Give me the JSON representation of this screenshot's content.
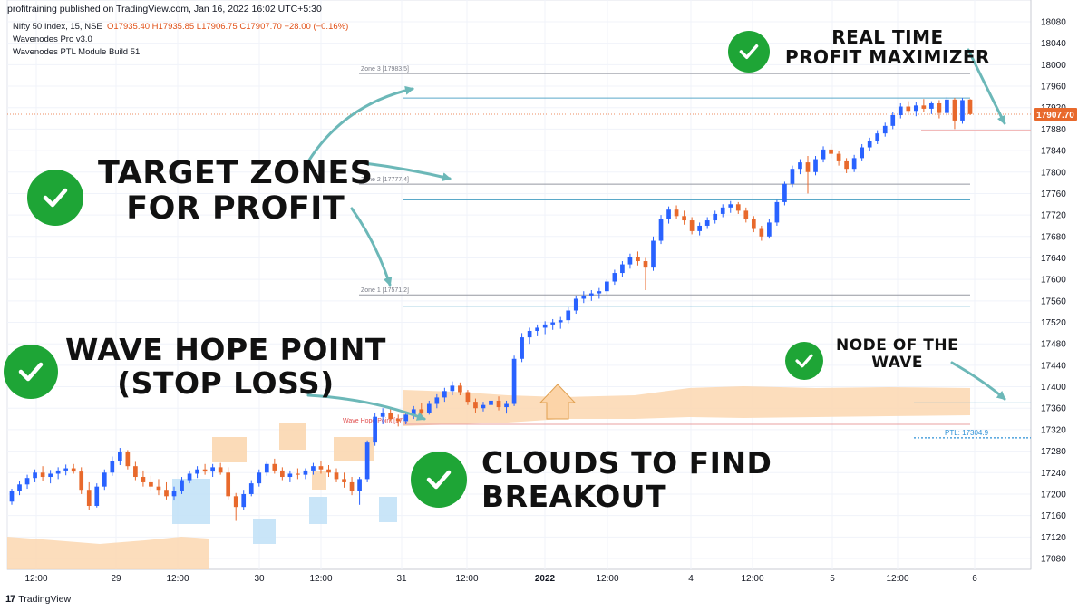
{
  "header": {
    "publish_line": "profitraining published on TradingView.com, Jan 16, 2022 16:02 UTC+5:30",
    "symbol_line": "Nifty 50 Index, 15, NSE",
    "ohlc_line": "O17935.40  H17935.85  L17906.75  C17907.70  −28.00 (−0.16%)",
    "indicator_1": "Wavenodes Pro v3.0",
    "indicator_2": "Wavenodes PTL Module Build 51"
  },
  "footer": {
    "logo_icon": "tradingview-logo-icon",
    "brand": "TradingView"
  },
  "annotations": {
    "target_zones": "TARGET ZONES\nFOR PROFIT",
    "real_time": "REAL TIME\nPROFIT MAXIMIZER",
    "wave_hope": "WAVE HOPE POINT\n(STOP LOSS)",
    "clouds": "CLOUDS TO FIND\nBREAKOUT",
    "node": "NODE OF THE\nWAVE"
  },
  "colors": {
    "up": "#2962ff",
    "down": "#e8692c",
    "check": "#1ea536",
    "arrow": "#6cb8b8",
    "cloud_orange": "#fbd7b0",
    "cloud_blue": "#bfe0f7",
    "price_tag": "#e8692c",
    "ptl": "#2b8fd6"
  },
  "chart_data": {
    "type": "candlestick",
    "symbol": "Nifty 50 Index",
    "interval": "15",
    "exchange": "NSE",
    "y_axis": {
      "ticks": [
        18080,
        18040,
        18000,
        17960,
        17920,
        17880,
        17840,
        17800,
        17760,
        17720,
        17680,
        17640,
        17600,
        17560,
        17520,
        17480,
        17440,
        17400,
        17360,
        17320,
        17280,
        17240,
        17200,
        17160,
        17120,
        17080
      ]
    },
    "ylim": [
      17050,
      18100
    ],
    "x_axis": {
      "labels": [
        "12:00",
        "29",
        "12:00",
        "30",
        "12:00",
        "31",
        "12:00",
        "2022",
        "12:00",
        "4",
        "12:00",
        "5",
        "12:00",
        "6"
      ]
    },
    "last_price": "17907.70",
    "zones": [
      {
        "label": "Zone 3 [17983.5]",
        "value": 17983.5
      },
      {
        "label": "Zone 2 [17777.4]",
        "value": 17777.4
      },
      {
        "label": "Zone 1 [17571.2]",
        "value": 17571.2
      }
    ],
    "wave_hope_point": {
      "label": "Wave Hope Point [17...",
      "value": 17330
    },
    "ptl": {
      "label": "PTL: 17304.9",
      "value": 17304.9
    },
    "target_lines": [
      17938,
      17748,
      17550
    ],
    "node_line": 17370,
    "profit_line": 17878,
    "candles_ohlc": [
      [
        17186,
        17210,
        17180,
        17205
      ],
      [
        17205,
        17225,
        17198,
        17218
      ],
      [
        17218,
        17236,
        17210,
        17230
      ],
      [
        17230,
        17246,
        17222,
        17240
      ],
      [
        17240,
        17252,
        17225,
        17232
      ],
      [
        17232,
        17245,
        17220,
        17238
      ],
      [
        17238,
        17250,
        17228,
        17244
      ],
      [
        17244,
        17255,
        17235,
        17248
      ],
      [
        17248,
        17256,
        17238,
        17242
      ],
      [
        17242,
        17250,
        17200,
        17208
      ],
      [
        17208,
        17222,
        17170,
        17178
      ],
      [
        17178,
        17220,
        17175,
        17214
      ],
      [
        17214,
        17246,
        17208,
        17240
      ],
      [
        17240,
        17270,
        17234,
        17262
      ],
      [
        17262,
        17286,
        17254,
        17278
      ],
      [
        17278,
        17282,
        17246,
        17252
      ],
      [
        17252,
        17260,
        17226,
        17232
      ],
      [
        17232,
        17244,
        17214,
        17222
      ],
      [
        17222,
        17234,
        17206,
        17214
      ],
      [
        17214,
        17228,
        17198,
        17208
      ],
      [
        17208,
        17222,
        17190,
        17196
      ],
      [
        17196,
        17214,
        17188,
        17206
      ],
      [
        17206,
        17232,
        17200,
        17226
      ],
      [
        17226,
        17244,
        17220,
        17238
      ],
      [
        17238,
        17252,
        17230,
        17246
      ],
      [
        17246,
        17256,
        17236,
        17242
      ],
      [
        17242,
        17256,
        17232,
        17250
      ],
      [
        17250,
        17258,
        17236,
        17240
      ],
      [
        17240,
        17250,
        17190,
        17196
      ],
      [
        17196,
        17202,
        17150,
        17176
      ],
      [
        17176,
        17208,
        17170,
        17200
      ],
      [
        17200,
        17226,
        17196,
        17220
      ],
      [
        17220,
        17246,
        17214,
        17240
      ],
      [
        17240,
        17260,
        17234,
        17256
      ],
      [
        17256,
        17266,
        17238,
        17244
      ],
      [
        17244,
        17250,
        17226,
        17232
      ],
      [
        17232,
        17244,
        17222,
        17238
      ],
      [
        17238,
        17248,
        17228,
        17236
      ],
      [
        17236,
        17248,
        17228,
        17244
      ],
      [
        17244,
        17258,
        17236,
        17252
      ],
      [
        17252,
        17262,
        17238,
        17246
      ],
      [
        17246,
        17254,
        17232,
        17240
      ],
      [
        17240,
        17248,
        17222,
        17228
      ],
      [
        17228,
        17240,
        17212,
        17222
      ],
      [
        17222,
        17232,
        17198,
        17206
      ],
      [
        17206,
        17232,
        17180,
        17228
      ],
      [
        17228,
        17300,
        17222,
        17296
      ],
      [
        17296,
        17352,
        17290,
        17344
      ],
      [
        17344,
        17360,
        17330,
        17352
      ],
      [
        17352,
        17362,
        17336,
        17340
      ],
      [
        17340,
        17348,
        17326,
        17336
      ],
      [
        17336,
        17354,
        17330,
        17348
      ],
      [
        17348,
        17364,
        17340,
        17358
      ],
      [
        17358,
        17370,
        17346,
        17352
      ],
      [
        17352,
        17374,
        17348,
        17368
      ],
      [
        17368,
        17386,
        17360,
        17380
      ],
      [
        17380,
        17398,
        17372,
        17392
      ],
      [
        17392,
        17410,
        17384,
        17402
      ],
      [
        17402,
        17408,
        17384,
        17390
      ],
      [
        17390,
        17394,
        17366,
        17372
      ],
      [
        17372,
        17378,
        17352,
        17360
      ],
      [
        17360,
        17372,
        17354,
        17366
      ],
      [
        17366,
        17380,
        17358,
        17374
      ],
      [
        17374,
        17382,
        17356,
        17362
      ],
      [
        17362,
        17374,
        17350,
        17368
      ],
      [
        17368,
        17458,
        17364,
        17452
      ],
      [
        17452,
        17500,
        17446,
        17492
      ],
      [
        17492,
        17510,
        17480,
        17504
      ],
      [
        17504,
        17516,
        17494,
        17510
      ],
      [
        17510,
        17522,
        17498,
        17516
      ],
      [
        17516,
        17526,
        17506,
        17520
      ],
      [
        17520,
        17530,
        17508,
        17524
      ],
      [
        17524,
        17548,
        17518,
        17542
      ],
      [
        17542,
        17570,
        17536,
        17564
      ],
      [
        17564,
        17578,
        17556,
        17570
      ],
      [
        17570,
        17580,
        17560,
        17574
      ],
      [
        17574,
        17584,
        17564,
        17578
      ],
      [
        17578,
        17600,
        17572,
        17596
      ],
      [
        17596,
        17618,
        17590,
        17612
      ],
      [
        17612,
        17634,
        17604,
        17628
      ],
      [
        17628,
        17648,
        17620,
        17642
      ],
      [
        17642,
        17652,
        17626,
        17634
      ],
      [
        17634,
        17640,
        17580,
        17622
      ],
      [
        17622,
        17680,
        17616,
        17672
      ],
      [
        17672,
        17720,
        17666,
        17712
      ],
      [
        17712,
        17736,
        17704,
        17730
      ],
      [
        17730,
        17738,
        17712,
        17718
      ],
      [
        17718,
        17728,
        17702,
        17710
      ],
      [
        17710,
        17716,
        17684,
        17690
      ],
      [
        17690,
        17706,
        17682,
        17700
      ],
      [
        17700,
        17716,
        17694,
        17710
      ],
      [
        17710,
        17728,
        17704,
        17722
      ],
      [
        17722,
        17740,
        17716,
        17734
      ],
      [
        17734,
        17746,
        17724,
        17740
      ],
      [
        17740,
        17744,
        17722,
        17728
      ],
      [
        17728,
        17734,
        17706,
        17712
      ],
      [
        17712,
        17718,
        17688,
        17694
      ],
      [
        17694,
        17700,
        17672,
        17680
      ],
      [
        17680,
        17712,
        17676,
        17706
      ],
      [
        17706,
        17748,
        17700,
        17744
      ],
      [
        17744,
        17782,
        17738,
        17778
      ],
      [
        17778,
        17812,
        17772,
        17806
      ],
      [
        17806,
        17824,
        17796,
        17818
      ],
      [
        17818,
        17830,
        17760,
        17800
      ],
      [
        17800,
        17830,
        17794,
        17824
      ],
      [
        17824,
        17848,
        17818,
        17842
      ],
      [
        17842,
        17852,
        17826,
        17834
      ],
      [
        17834,
        17840,
        17812,
        17820
      ],
      [
        17820,
        17826,
        17798,
        17806
      ],
      [
        17806,
        17832,
        17800,
        17826
      ],
      [
        17826,
        17852,
        17820,
        17846
      ],
      [
        17846,
        17864,
        17840,
        17858
      ],
      [
        17858,
        17878,
        17852,
        17872
      ],
      [
        17872,
        17892,
        17866,
        17886
      ],
      [
        17886,
        17912,
        17880,
        17906
      ],
      [
        17906,
        17928,
        17900,
        17922
      ],
      [
        17922,
        17932,
        17906,
        17914
      ],
      [
        17914,
        17930,
        17904,
        17924
      ],
      [
        17924,
        17936,
        17912,
        17918
      ],
      [
        17918,
        17932,
        17908,
        17928
      ],
      [
        17928,
        17934,
        17900,
        17910
      ],
      [
        17910,
        17940,
        17904,
        17935
      ],
      [
        17935,
        17938,
        17880,
        17896
      ],
      [
        17896,
        17938,
        17890,
        17934
      ],
      [
        17935,
        17936,
        17906,
        17908
      ]
    ]
  }
}
